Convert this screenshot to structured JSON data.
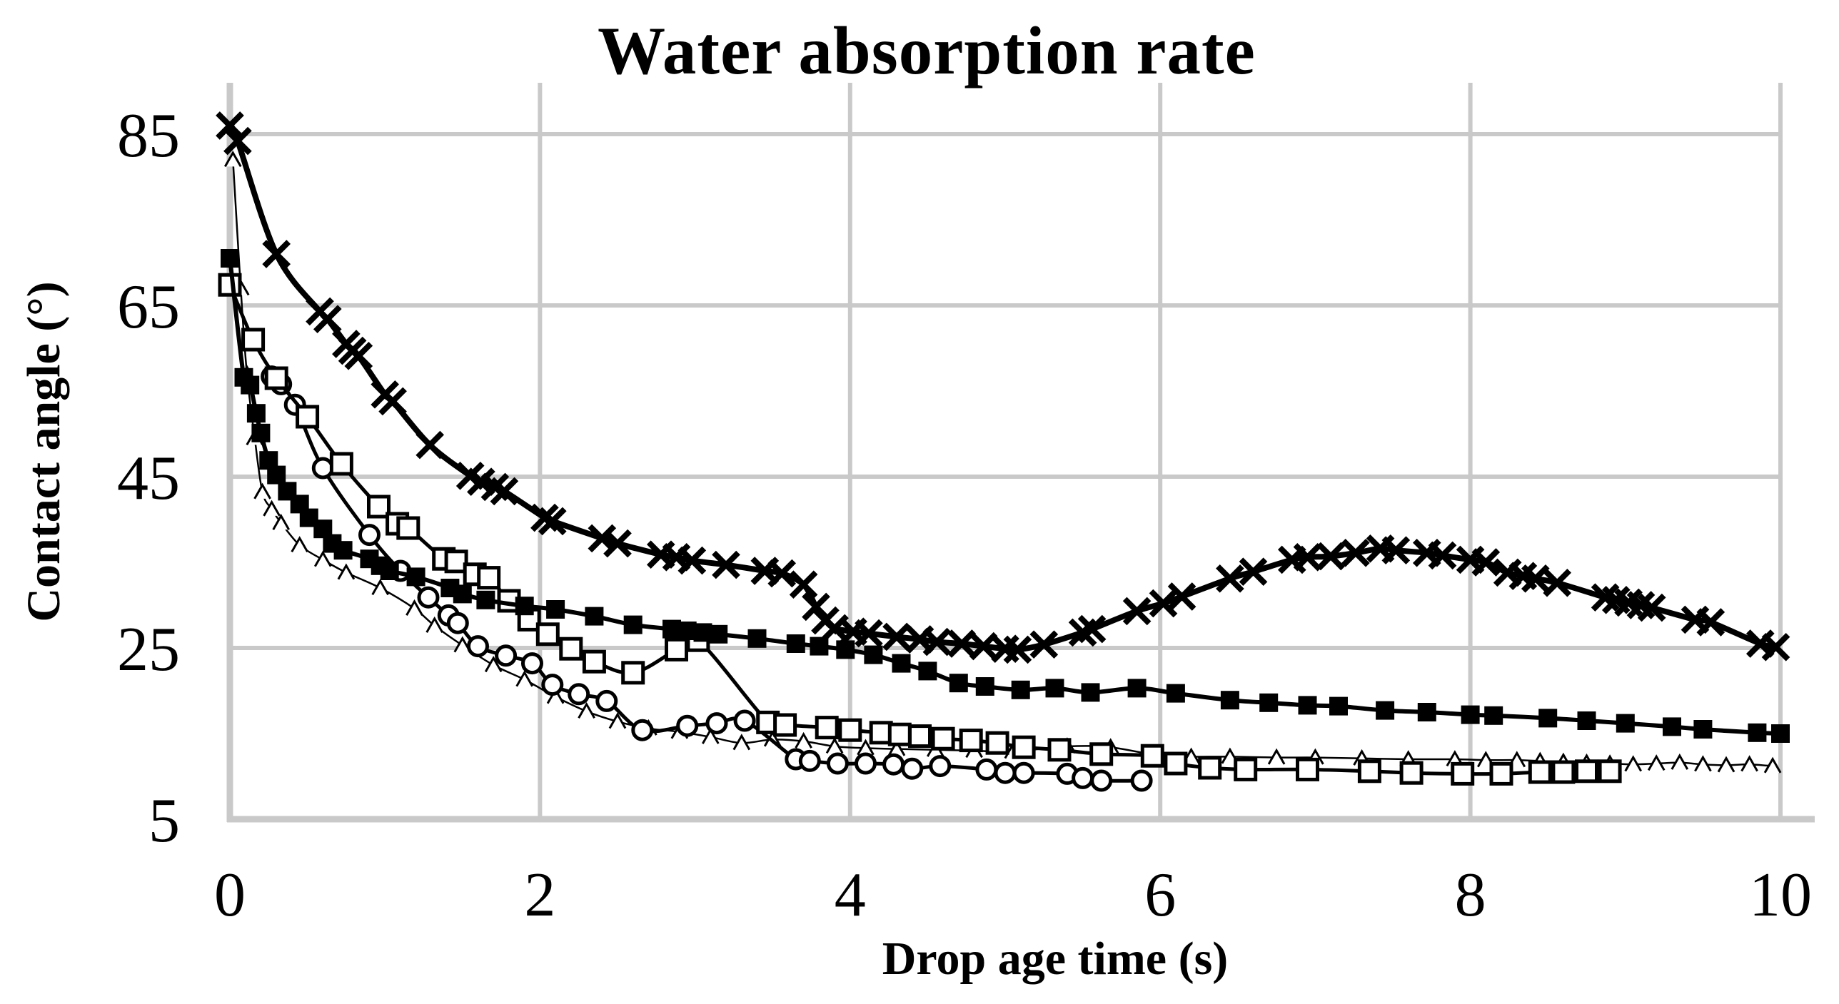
{
  "page": {
    "background": "#ffffff"
  },
  "chart_data": {
    "type": "line",
    "title": "Water absorption rate",
    "xlabel": "Drop age time (s)",
    "ylabel": "Contact angle (°)",
    "xlim": [
      0,
      10
    ],
    "ylim": [
      5,
      91
    ],
    "x_ticks": [
      0,
      2,
      4,
      6,
      8,
      10
    ],
    "x_tick_labels": [
      "0",
      "2",
      "4",
      "6",
      "8",
      "10"
    ],
    "y_ticks": [
      85,
      65,
      45,
      25,
      5
    ],
    "y_tick_labels": [
      "85",
      "65",
      "45",
      "25",
      "5"
    ],
    "grid": true,
    "legend": "none",
    "colors": {
      "series": "#000000",
      "grid": "#c9c9c9",
      "text": "#000000",
      "background": "#ffffff"
    },
    "series": [
      {
        "name": "open-triangle-thin",
        "marker": "triangle-open",
        "line_width": 2.5,
        "marker_size": 11,
        "marker_stroke": 3,
        "points": [
          [
            0.02,
            82
          ],
          [
            0.07,
            67
          ],
          [
            0.11,
            57
          ],
          [
            0.16,
            49.5
          ],
          [
            0.21,
            43.2
          ],
          [
            0.27,
            41.2
          ],
          [
            0.33,
            39.6
          ],
          [
            0.45,
            37.0
          ],
          [
            0.6,
            35.3
          ],
          [
            0.75,
            33.8
          ],
          [
            0.97,
            32.0
          ],
          [
            1.19,
            29.6
          ],
          [
            1.32,
            27.6
          ],
          [
            1.5,
            25.3
          ],
          [
            1.7,
            23.0
          ],
          [
            1.9,
            21.3
          ],
          [
            2.1,
            19.3
          ],
          [
            2.3,
            17.6
          ],
          [
            2.5,
            16.4
          ],
          [
            2.7,
            15.6
          ],
          [
            2.9,
            15.2
          ],
          [
            3.1,
            14.6
          ],
          [
            3.3,
            13.9
          ],
          [
            3.5,
            14.3
          ],
          [
            3.7,
            14.1
          ],
          [
            3.9,
            13.5
          ],
          [
            4.1,
            13.3
          ],
          [
            4.3,
            13.2
          ],
          [
            4.55,
            13.1
          ],
          [
            4.8,
            13.0
          ],
          [
            5.05,
            12.9
          ],
          [
            5.4,
            13.5
          ],
          [
            5.68,
            13.4
          ],
          [
            6.0,
            12.4
          ],
          [
            6.2,
            12.3
          ],
          [
            6.45,
            12.3
          ],
          [
            6.75,
            12.2
          ],
          [
            7.0,
            12.2
          ],
          [
            7.3,
            12.1
          ],
          [
            7.6,
            12.0
          ],
          [
            7.9,
            12.0
          ],
          [
            8.1,
            11.9
          ],
          [
            8.3,
            11.9
          ],
          [
            8.45,
            11.8
          ],
          [
            8.6,
            11.7
          ],
          [
            8.75,
            11.6
          ],
          [
            8.9,
            11.5
          ],
          [
            9.05,
            11.4
          ],
          [
            9.2,
            11.5
          ],
          [
            9.35,
            11.6
          ],
          [
            9.5,
            11.4
          ],
          [
            9.65,
            11.3
          ],
          [
            9.8,
            11.4
          ],
          [
            9.95,
            11.2
          ]
        ]
      },
      {
        "name": "open-circle",
        "marker": "circle-open",
        "line_width": 5,
        "marker_size": 13,
        "marker_stroke": 5,
        "points": [
          [
            0.27,
            56.7
          ],
          [
            0.33,
            55.8
          ],
          [
            0.42,
            53.4
          ],
          [
            0.6,
            46.0
          ],
          [
            0.9,
            38.2
          ],
          [
            1.1,
            34.0
          ],
          [
            1.28,
            30.9
          ],
          [
            1.41,
            28.8
          ],
          [
            1.47,
            27.9
          ],
          [
            1.6,
            25.2
          ],
          [
            1.78,
            24.1
          ],
          [
            1.95,
            23.2
          ],
          [
            2.08,
            20.7
          ],
          [
            2.25,
            19.6
          ],
          [
            2.43,
            18.8
          ],
          [
            2.66,
            15.4
          ],
          [
            2.95,
            15.9
          ],
          [
            3.14,
            16.2
          ],
          [
            3.32,
            16.5
          ],
          [
            3.65,
            12.0
          ],
          [
            3.74,
            11.8
          ],
          [
            3.92,
            11.5
          ],
          [
            4.1,
            11.5
          ],
          [
            4.28,
            11.4
          ],
          [
            4.4,
            10.9
          ],
          [
            4.58,
            11.2
          ],
          [
            4.88,
            10.8
          ],
          [
            5.0,
            10.4
          ],
          [
            5.12,
            10.4
          ],
          [
            5.4,
            10.3
          ],
          [
            5.5,
            9.8
          ],
          [
            5.62,
            9.5
          ],
          [
            5.88,
            9.5
          ]
        ]
      },
      {
        "name": "open-square",
        "marker": "square-open",
        "line_width": 5,
        "marker_size": 28,
        "marker_stroke": 5,
        "points": [
          [
            0,
            67.4
          ],
          [
            0.15,
            61.0
          ],
          [
            0.3,
            56.5
          ],
          [
            0.5,
            52.0
          ],
          [
            0.72,
            46.5
          ],
          [
            0.96,
            41.5
          ],
          [
            1.08,
            39.5
          ],
          [
            1.15,
            39.0
          ],
          [
            1.38,
            35.4
          ],
          [
            1.46,
            35.1
          ],
          [
            1.58,
            33.6
          ],
          [
            1.67,
            33.2
          ],
          [
            1.8,
            30.5
          ],
          [
            1.93,
            28.3
          ],
          [
            2.05,
            26.6
          ],
          [
            2.2,
            24.9
          ],
          [
            2.35,
            23.4
          ],
          [
            2.6,
            22.1
          ],
          [
            2.88,
            24.8
          ],
          [
            3.02,
            25.9
          ],
          [
            3.47,
            16.3
          ],
          [
            3.58,
            16.0
          ],
          [
            3.85,
            15.7
          ],
          [
            4.0,
            15.4
          ],
          [
            4.2,
            15.1
          ],
          [
            4.32,
            14.9
          ],
          [
            4.45,
            14.7
          ],
          [
            4.6,
            14.4
          ],
          [
            4.78,
            14.2
          ],
          [
            4.95,
            13.9
          ],
          [
            5.12,
            13.4
          ],
          [
            5.35,
            13.1
          ],
          [
            5.62,
            12.6
          ],
          [
            5.95,
            12.4
          ],
          [
            6.1,
            11.5
          ],
          [
            6.32,
            11.0
          ],
          [
            6.55,
            10.8
          ],
          [
            6.95,
            10.8
          ],
          [
            7.35,
            10.6
          ],
          [
            7.62,
            10.4
          ],
          [
            7.95,
            10.3
          ],
          [
            8.2,
            10.3
          ],
          [
            8.45,
            10.5
          ],
          [
            8.6,
            10.5
          ],
          [
            8.75,
            10.6
          ],
          [
            8.9,
            10.6
          ]
        ]
      },
      {
        "name": "filled-square",
        "marker": "square-filled",
        "line_width": 6,
        "marker_size": 26,
        "marker_stroke": 0,
        "points": [
          [
            0,
            70.5
          ],
          [
            0.09,
            56.6
          ],
          [
            0.13,
            55.7
          ],
          [
            0.17,
            52.4
          ],
          [
            0.2,
            50.1
          ],
          [
            0.25,
            46.9
          ],
          [
            0.3,
            45.2
          ],
          [
            0.37,
            43.3
          ],
          [
            0.45,
            41.8
          ],
          [
            0.51,
            40.2
          ],
          [
            0.6,
            38.9
          ],
          [
            0.66,
            37.2
          ],
          [
            0.73,
            36.4
          ],
          [
            0.9,
            35.4
          ],
          [
            0.97,
            34.6
          ],
          [
            1.03,
            34.0
          ],
          [
            1.2,
            33.3
          ],
          [
            1.42,
            32.0
          ],
          [
            1.5,
            31.3
          ],
          [
            1.65,
            30.6
          ],
          [
            1.9,
            29.9
          ],
          [
            2.1,
            29.5
          ],
          [
            2.35,
            28.7
          ],
          [
            2.6,
            27.7
          ],
          [
            2.85,
            27.2
          ],
          [
            2.95,
            27.0
          ],
          [
            3.05,
            26.8
          ],
          [
            3.15,
            26.6
          ],
          [
            3.4,
            26.1
          ],
          [
            3.65,
            25.5
          ],
          [
            3.8,
            25.2
          ],
          [
            3.97,
            24.8
          ],
          [
            4.15,
            24.2
          ],
          [
            4.33,
            23.2
          ],
          [
            4.5,
            22.3
          ],
          [
            4.7,
            20.9
          ],
          [
            4.87,
            20.5
          ],
          [
            5.1,
            20.1
          ],
          [
            5.32,
            20.3
          ],
          [
            5.55,
            19.8
          ],
          [
            5.85,
            20.3
          ],
          [
            6.1,
            19.7
          ],
          [
            6.45,
            18.9
          ],
          [
            6.7,
            18.6
          ],
          [
            6.95,
            18.3
          ],
          [
            7.15,
            18.2
          ],
          [
            7.45,
            17.7
          ],
          [
            7.72,
            17.5
          ],
          [
            8.0,
            17.2
          ],
          [
            8.15,
            17.1
          ],
          [
            8.5,
            16.8
          ],
          [
            8.75,
            16.5
          ],
          [
            9.0,
            16.2
          ],
          [
            9.3,
            15.8
          ],
          [
            9.5,
            15.5
          ],
          [
            9.85,
            15.1
          ],
          [
            10,
            15.0
          ]
        ]
      },
      {
        "name": "cross-bold",
        "marker": "cross",
        "line_width": 8,
        "marker_size": 17,
        "marker_stroke": 8,
        "points": [
          [
            0,
            86
          ],
          [
            0.05,
            84.2
          ],
          [
            0.3,
            71
          ],
          [
            0.58,
            64.3
          ],
          [
            0.63,
            63.4
          ],
          [
            0.75,
            60.5
          ],
          [
            0.79,
            59.7
          ],
          [
            0.83,
            59.1
          ],
          [
            1.0,
            54.6
          ],
          [
            1.05,
            53.8
          ],
          [
            1.29,
            48.7
          ],
          [
            1.55,
            45.1
          ],
          [
            1.62,
            44.4
          ],
          [
            1.71,
            43.8
          ],
          [
            1.77,
            43.3
          ],
          [
            2.03,
            40.2
          ],
          [
            2.08,
            39.8
          ],
          [
            2.4,
            37.8
          ],
          [
            2.5,
            37.2
          ],
          [
            2.78,
            35.9
          ],
          [
            2.88,
            35.6
          ],
          [
            2.98,
            35.2
          ],
          [
            3.2,
            34.7
          ],
          [
            3.45,
            34.0
          ],
          [
            3.56,
            33.7
          ],
          [
            3.7,
            32.4
          ],
          [
            3.78,
            29.8
          ],
          [
            3.84,
            28.2
          ],
          [
            3.9,
            27.3
          ],
          [
            4.02,
            26.9
          ],
          [
            4.12,
            26.7
          ],
          [
            4.3,
            26.3
          ],
          [
            4.45,
            26.0
          ],
          [
            4.56,
            25.7
          ],
          [
            4.72,
            25.5
          ],
          [
            4.86,
            25.2
          ],
          [
            5.0,
            24.9
          ],
          [
            5.08,
            24.8
          ],
          [
            5.25,
            25.4
          ],
          [
            5.5,
            26.8
          ],
          [
            5.56,
            27.2
          ],
          [
            5.85,
            29.3
          ],
          [
            6.02,
            30.2
          ],
          [
            6.14,
            31.0
          ],
          [
            6.45,
            33.1
          ],
          [
            6.6,
            33.9
          ],
          [
            6.85,
            35.3
          ],
          [
            6.95,
            35.6
          ],
          [
            7.1,
            35.7
          ],
          [
            7.26,
            36.1
          ],
          [
            7.42,
            36.6
          ],
          [
            7.52,
            36.4
          ],
          [
            7.72,
            36.1
          ],
          [
            7.82,
            35.8
          ],
          [
            8.0,
            35.3
          ],
          [
            8.1,
            35.0
          ],
          [
            8.24,
            33.8
          ],
          [
            8.34,
            33.4
          ],
          [
            8.42,
            33.1
          ],
          [
            8.56,
            32.6
          ],
          [
            8.87,
            30.9
          ],
          [
            8.94,
            30.6
          ],
          [
            9.02,
            30.3
          ],
          [
            9.1,
            30.0
          ],
          [
            9.17,
            29.7
          ],
          [
            9.45,
            28.3
          ],
          [
            9.55,
            28.0
          ],
          [
            9.87,
            25.5
          ],
          [
            9.97,
            25.1
          ]
        ]
      }
    ]
  }
}
